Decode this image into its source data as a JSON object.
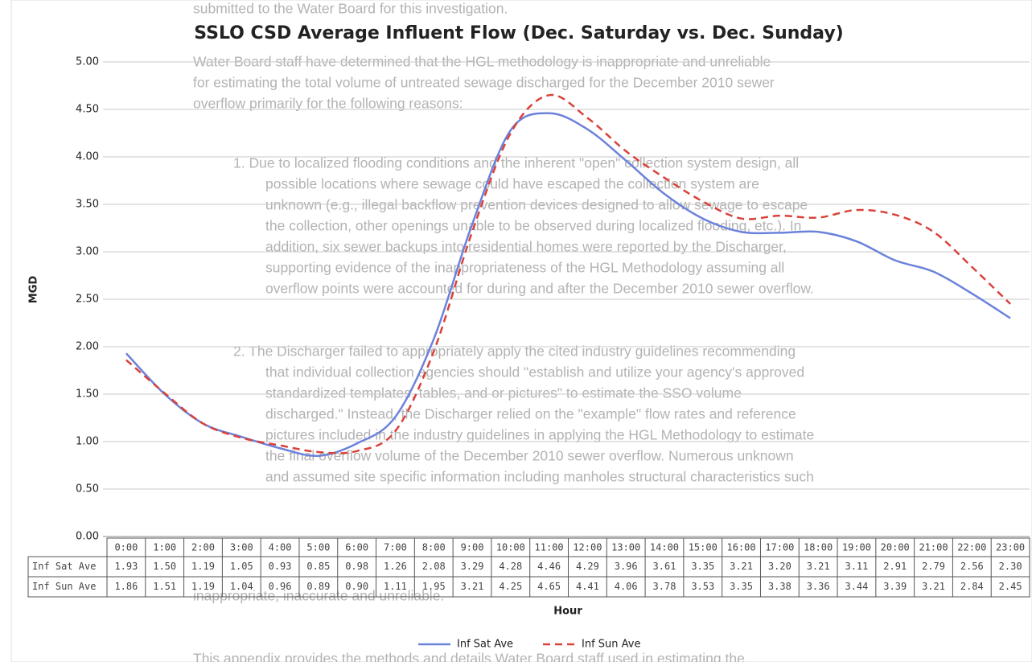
{
  "document_text": [
    "submitted to the Water Board for this investigation.",
    "Water Board staff have determined that the HGL methodology is inappropriate and unreliable",
    "for estimating the total volume of untreated sewage discharged for the December 2010 sewer",
    "overflow primarily for the following reasons:",
    "1.   Due to localized flooding conditions and the inherent \"open\" collection system design, all",
    "possible locations where sewage could have escaped the collection system are",
    "unknown (e.g., illegal backflow prevention devices designed to allow sewage to escape",
    "the collection, other openings unable to be observed during localized flooding, etc.). In",
    "addition, six sewer backups into residential homes were reported by the Discharger,",
    "supporting evidence of the inappropriateness of the HGL Methodology assuming all",
    "overflow points were accounted for during and after the December 2010 sewer overflow.",
    "2.   The Discharger failed to appropriately apply the cited industry guidelines recommending",
    "that individual collection agencies should \"establish and utilize your agency's approved",
    "standardized templates, tables, and or pictures\" to estimate the SSO volume",
    "discharged.\" Instead, the Discharger relied on the \"example\" flow rates and reference",
    "pictures included in the industry guidelines in applying the HGL Methodology to estimate",
    "the final overflow volume of the December 2010 sewer overflow. Numerous unknown",
    "and assumed site specific information including manholes structural characteristics such",
    "inappropriate, inaccurate and unreliable.",
    "This appendix provides the methods and details Water Board staff used in estimating the"
  ],
  "chart_data": {
    "type": "line",
    "title": "SSLO CSD Average Influent Flow (Dec. Saturday vs. Dec. Sunday)",
    "y_label": "MGD",
    "x_label": "Hour",
    "categories": [
      "0:00",
      "1:00",
      "2:00",
      "3:00",
      "4:00",
      "5:00",
      "6:00",
      "7:00",
      "8:00",
      "9:00",
      "10:00",
      "11:00",
      "12:00",
      "13:00",
      "14:00",
      "15:00",
      "16:00",
      "17:00",
      "18:00",
      "19:00",
      "20:00",
      "21:00",
      "22:00",
      "23:00"
    ],
    "series": [
      {
        "name": "Inf Sat Ave",
        "color": "#6b82db",
        "dash": false,
        "values": [
          1.93,
          1.5,
          1.19,
          1.05,
          0.93,
          0.85,
          0.98,
          1.26,
          2.08,
          3.29,
          4.28,
          4.46,
          4.29,
          3.96,
          3.61,
          3.35,
          3.21,
          3.2,
          3.21,
          3.11,
          2.91,
          2.79,
          2.56,
          2.3
        ],
        "value_labels": [
          "1.93",
          "1.50",
          "1.19",
          "1.05",
          "0.93",
          "0.85",
          "0.98",
          "1.26",
          "2.08",
          "3.29",
          "4.28",
          "4.46",
          "4.29",
          "3.96",
          "3.61",
          "3.35",
          "3.21",
          "3.20",
          "3.21",
          "3.11",
          "2.91",
          "2.79",
          "2.56",
          "2.30"
        ]
      },
      {
        "name": "Inf Sun Ave",
        "color": "#d9423a",
        "dash": true,
        "values": [
          1.86,
          1.51,
          1.19,
          1.04,
          0.96,
          0.89,
          0.9,
          1.11,
          1.95,
          3.21,
          4.25,
          4.65,
          4.41,
          4.06,
          3.78,
          3.53,
          3.35,
          3.38,
          3.36,
          3.44,
          3.39,
          3.21,
          2.84,
          2.45
        ],
        "value_labels": [
          "1.86",
          "1.51",
          "1.19",
          "1.04",
          "0.96",
          "0.89",
          "0.90",
          "1.11",
          "1.95",
          "3.21",
          "4.25",
          "4.65",
          "4.41",
          "4.06",
          "3.78",
          "3.53",
          "3.35",
          "3.38",
          "3.36",
          "3.44",
          "3.39",
          "3.21",
          "2.84",
          "2.45"
        ]
      }
    ],
    "ylim": [
      0,
      5
    ],
    "yticks": [
      {
        "value": 0,
        "label": "0.00"
      },
      {
        "value": 0.5,
        "label": "0.50"
      },
      {
        "value": 1,
        "label": "1.00"
      },
      {
        "value": 1.5,
        "label": "1.50"
      },
      {
        "value": 2,
        "label": "2.00"
      },
      {
        "value": 2.5,
        "label": "2.50"
      },
      {
        "value": 3,
        "label": "3.00"
      },
      {
        "value": 3.5,
        "label": "3.50"
      },
      {
        "value": 4,
        "label": "4.00"
      },
      {
        "value": 4.5,
        "label": "4.50"
      },
      {
        "value": 5,
        "label": "5.00"
      }
    ],
    "grid": true,
    "legend": "bottom",
    "smooth": true
  }
}
